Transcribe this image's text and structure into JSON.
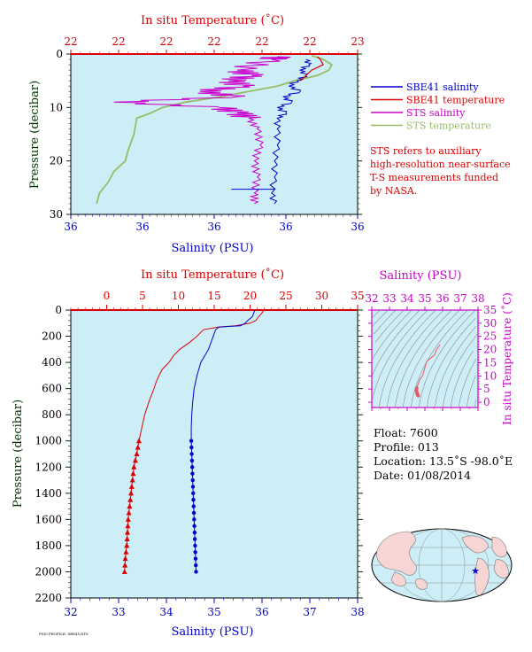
{
  "colors": {
    "red": "#dd0000",
    "blue": "#0000cc",
    "magenta": "#cc00cc",
    "green": "#99bb66",
    "plot_bg": "#cdeef7",
    "axis_dark": "#003300"
  },
  "top_panel": {
    "x_top_label": "In situ Temperature (˚C)",
    "x_bottom_label": "Salinity (PSU)",
    "y_label": "Pressure (decibar)",
    "top_ticks": [
      "22",
      "22",
      "22",
      "22",
      "22",
      "22",
      "23"
    ],
    "bottom_ticks": [
      "36",
      "36",
      "36",
      "36",
      "36"
    ],
    "y_ticks": [
      "0",
      "10",
      "20",
      "30"
    ],
    "legend": [
      {
        "label": "SBE41 salinity",
        "color": "#0000cc"
      },
      {
        "label": "SBE41 temperature",
        "color": "#dd0000"
      },
      {
        "label": "STS salinity",
        "color": "#cc00cc"
      },
      {
        "label": "STS temperature",
        "color": "#99bb66"
      }
    ],
    "note": [
      "STS refers to auxiliary",
      "high-resolution near-surface",
      "T-S measurements funded",
      "by NASA."
    ]
  },
  "bottom_panel": {
    "x_top_label": "In situ Temperature (˚C)",
    "x_bottom_label": "Salinity (PSU)",
    "y_label": "Pressure (decibar)",
    "footnote": "FSI0 PROFILE: SBE41/STS"
  },
  "ts_panel": {
    "x_label": "Salinity (PSU)",
    "y_label": "In situ Temperature (˚C)",
    "x_ticks": [
      "32",
      "33",
      "34",
      "35",
      "36",
      "37",
      "38"
    ],
    "y_ticks": [
      "0",
      "5",
      "10",
      "15",
      "20",
      "25",
      "30",
      "35"
    ]
  },
  "float_info": {
    "float": "Float:  7600",
    "profile": "Profile:  013",
    "location": "Location:  13.5˚S  -98.0˚E",
    "date": "Date:  01/08/2014"
  },
  "chart_data": [
    {
      "type": "line",
      "title": "",
      "ylabel": "Pressure (decibar)",
      "xlabel": "Salinity (PSU)",
      "x2label": "In situ Temperature (˚C)",
      "ylim": [
        30,
        0
      ],
      "series": [
        {
          "name": "SBE41 salinity",
          "pressure": [
            1,
            2,
            3,
            4,
            5,
            6,
            7,
            8,
            9,
            10,
            11,
            12,
            14,
            17,
            20,
            23,
            26,
            28
          ],
          "values": [
            0.82,
            0.83,
            0.8,
            0.82,
            0.79,
            0.76,
            0.8,
            0.74,
            0.77,
            0.72,
            0.75,
            0.72,
            0.72,
            0.72,
            0.71,
            0.71,
            0.7,
            0.71
          ]
        },
        {
          "name": "SBE41 temperature",
          "pressure": [
            0.5,
            1,
            2,
            3,
            4,
            5
          ],
          "values": [
            0.86,
            0.87,
            0.88,
            0.84,
            0.82,
            0.8
          ]
        },
        {
          "name": "STS salinity",
          "pressure": [
            0.5,
            1,
            3,
            4,
            5,
            6,
            7,
            8,
            9,
            10,
            11,
            12,
            14,
            17,
            20,
            23,
            26,
            28
          ],
          "values": [
            0.72,
            0.7,
            0.58,
            0.63,
            0.55,
            0.6,
            0.45,
            0.58,
            0.15,
            0.52,
            0.58,
            0.62,
            0.65,
            0.66,
            0.64,
            0.65,
            0.64,
            0.64
          ]
        },
        {
          "name": "STS temperature",
          "pressure": [
            0.3,
            1,
            2,
            3,
            4,
            5,
            6,
            8,
            9,
            10,
            11,
            12,
            15,
            18,
            20,
            22,
            24,
            26,
            28
          ],
          "values": [
            0.84,
            0.88,
            0.91,
            0.9,
            0.86,
            0.78,
            0.72,
            0.52,
            0.4,
            0.32,
            0.28,
            0.23,
            0.22,
            0.2,
            0.19,
            0.15,
            0.13,
            0.1,
            0.09
          ]
        }
      ]
    },
    {
      "type": "line",
      "title": "",
      "xlabel": "Salinity (PSU)",
      "x2label": "In situ Temperature (˚C)",
      "ylabel": "Pressure (decibar)",
      "xlim": [
        32,
        38
      ],
      "x2lim": [
        -5,
        35
      ],
      "ylim": [
        2200,
        0
      ],
      "x_ticks": [
        32,
        33,
        34,
        35,
        36,
        37,
        38
      ],
      "x2_ticks": [
        0,
        5,
        10,
        15,
        20,
        25,
        30,
        35
      ],
      "y_ticks": [
        0,
        200,
        400,
        600,
        800,
        1000,
        1200,
        1400,
        1600,
        1800,
        2000,
        2200
      ],
      "series": [
        {
          "name": "",
          "axis": "temperature",
          "pressure": [
            0,
            20,
            50,
            80,
            100,
            120,
            130,
            150,
            200,
            250,
            300,
            350,
            400,
            450,
            500,
            550,
            600,
            700,
            800,
            900,
            1000,
            1100,
            1200,
            1300,
            1400,
            1500,
            1600,
            1700,
            1800,
            1900,
            2000
          ],
          "values": [
            21.9,
            21.7,
            21.2,
            20.8,
            20.0,
            18.0,
            15.5,
            13.5,
            12.6,
            11.5,
            10.2,
            9.3,
            8.7,
            7.8,
            7.3,
            6.9,
            6.6,
            5.9,
            5.3,
            4.9,
            4.5,
            4.2,
            3.8,
            3.6,
            3.4,
            3.2,
            3.0,
            2.9,
            2.8,
            2.6,
            2.5
          ]
        },
        {
          "name": "",
          "axis": "salinity",
          "pressure": [
            0,
            20,
            50,
            80,
            100,
            120,
            130,
            150,
            200,
            250,
            300,
            350,
            400,
            500,
            600,
            700,
            800,
            900,
            1000,
            1100,
            1200,
            1300,
            1400,
            1500,
            1600,
            1700,
            1800,
            1900,
            2000
          ],
          "values": [
            35.85,
            35.83,
            35.8,
            35.7,
            35.65,
            35.55,
            35.1,
            35.03,
            34.98,
            34.93,
            34.88,
            34.8,
            34.72,
            34.64,
            34.58,
            34.55,
            34.53,
            34.52,
            34.52,
            34.53,
            34.54,
            34.55,
            34.56,
            34.57,
            34.58,
            34.59,
            34.6,
            34.61,
            34.62
          ]
        }
      ],
      "deep_markers_pressure": [
        1000,
        1050,
        1100,
        1150,
        1200,
        1250,
        1300,
        1350,
        1400,
        1450,
        1500,
        1550,
        1600,
        1650,
        1700,
        1750,
        1800,
        1850,
        1900,
        1950,
        2000
      ]
    },
    {
      "type": "scatter",
      "title": "",
      "xlabel": "Salinity (PSU)",
      "ylabel": "In situ Temperature (˚C)",
      "xlim": [
        32,
        38
      ],
      "ylim": [
        -2,
        35
      ],
      "series": [
        {
          "name": "",
          "x": [
            35.85,
            35.8,
            35.65,
            35.55,
            35.1,
            34.98,
            34.88,
            34.72,
            34.6,
            34.54,
            34.52,
            34.55,
            34.58,
            34.62
          ],
          "y": [
            21.9,
            21.2,
            20.0,
            18.0,
            15.5,
            12.6,
            10.2,
            8.7,
            6.6,
            5.3,
            4.5,
            3.6,
            3.0,
            2.5
          ]
        }
      ]
    }
  ]
}
